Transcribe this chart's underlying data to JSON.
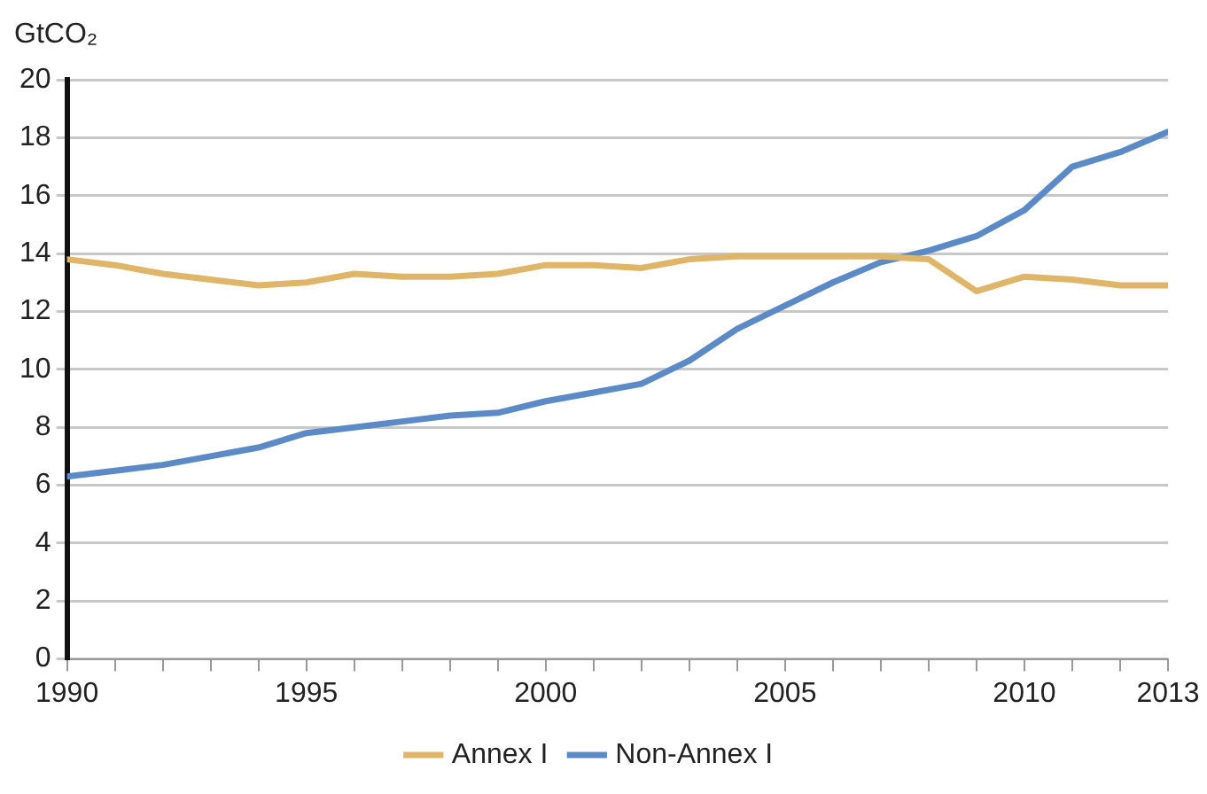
{
  "chart_data": {
    "type": "line",
    "ylabel": "GtCO₂",
    "x": [
      1990,
      1991,
      1992,
      1993,
      1994,
      1995,
      1996,
      1997,
      1998,
      1999,
      2000,
      2001,
      2002,
      2003,
      2004,
      2005,
      2006,
      2007,
      2008,
      2009,
      2010,
      2011,
      2012,
      2013
    ],
    "series": [
      {
        "name": "Annex I",
        "color": "#dfb56a",
        "values": [
          13.8,
          13.6,
          13.3,
          13.1,
          12.9,
          13.0,
          13.3,
          13.2,
          13.2,
          13.3,
          13.6,
          13.6,
          13.5,
          13.8,
          13.9,
          13.9,
          13.9,
          13.9,
          13.8,
          12.7,
          13.2,
          13.1,
          12.9,
          12.9
        ]
      },
      {
        "name": "Non-Annex I",
        "color": "#5b8ac6",
        "values": [
          6.3,
          6.5,
          6.7,
          7.0,
          7.3,
          7.8,
          8.0,
          8.2,
          8.4,
          8.5,
          8.9,
          9.2,
          9.5,
          10.3,
          11.4,
          12.2,
          13.0,
          13.7,
          14.1,
          14.6,
          15.5,
          17.0,
          17.5,
          18.2
        ]
      }
    ],
    "xlim": [
      1990,
      2013
    ],
    "xticks": [
      1990,
      {
        "value": 1991,
        "label": null
      },
      {
        "value": 1992,
        "label": null
      },
      {
        "value": 1993,
        "label": null
      },
      {
        "value": 1994,
        "label": null
      },
      1995,
      {
        "value": 1996,
        "label": null
      },
      {
        "value": 1997,
        "label": null
      },
      {
        "value": 1998,
        "label": null
      },
      {
        "value": 1999,
        "label": null
      },
      2000,
      {
        "value": 2001,
        "label": null
      },
      {
        "value": 2002,
        "label": null
      },
      {
        "value": 2003,
        "label": null
      },
      {
        "value": 2004,
        "label": null
      },
      2005,
      {
        "value": 2006,
        "label": null
      },
      {
        "value": 2007,
        "label": null
      },
      {
        "value": 2008,
        "label": null
      },
      {
        "value": 2009,
        "label": null
      },
      2010,
      {
        "value": 2011,
        "label": null
      },
      {
        "value": 2012,
        "label": null
      },
      2013
    ],
    "ylim": [
      0,
      20
    ],
    "yticks": [
      0,
      2,
      4,
      6,
      8,
      10,
      12,
      14,
      16,
      18,
      20
    ],
    "grid": "y",
    "legend": "bottom",
    "marker": "none",
    "line_style": "solid"
  }
}
